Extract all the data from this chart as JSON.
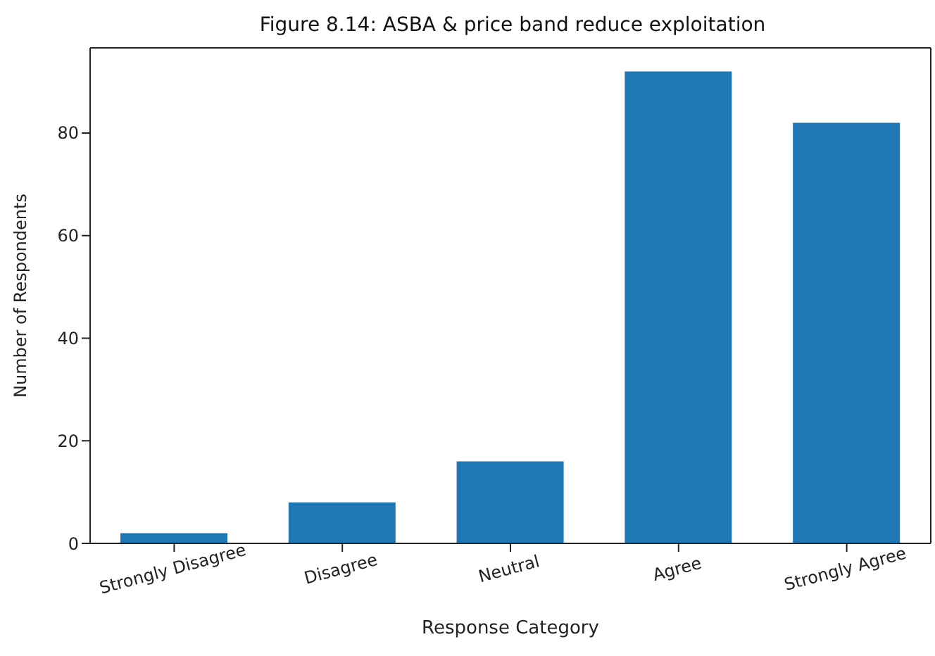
{
  "chart_data": {
    "type": "bar",
    "title": "Figure 8.14: ASBA & price band reduce exploitation",
    "xlabel": "Response Category",
    "ylabel": "Number of Respondents",
    "categories": [
      "Strongly Disagree",
      "Disagree",
      "Neutral",
      "Agree",
      "Strongly Agree"
    ],
    "values": [
      2,
      8,
      16,
      92,
      82
    ],
    "color": "#1f77b4",
    "ylim": [
      0,
      96.6
    ],
    "yticks": [
      0,
      20,
      40,
      60,
      80
    ],
    "grid": false
  }
}
